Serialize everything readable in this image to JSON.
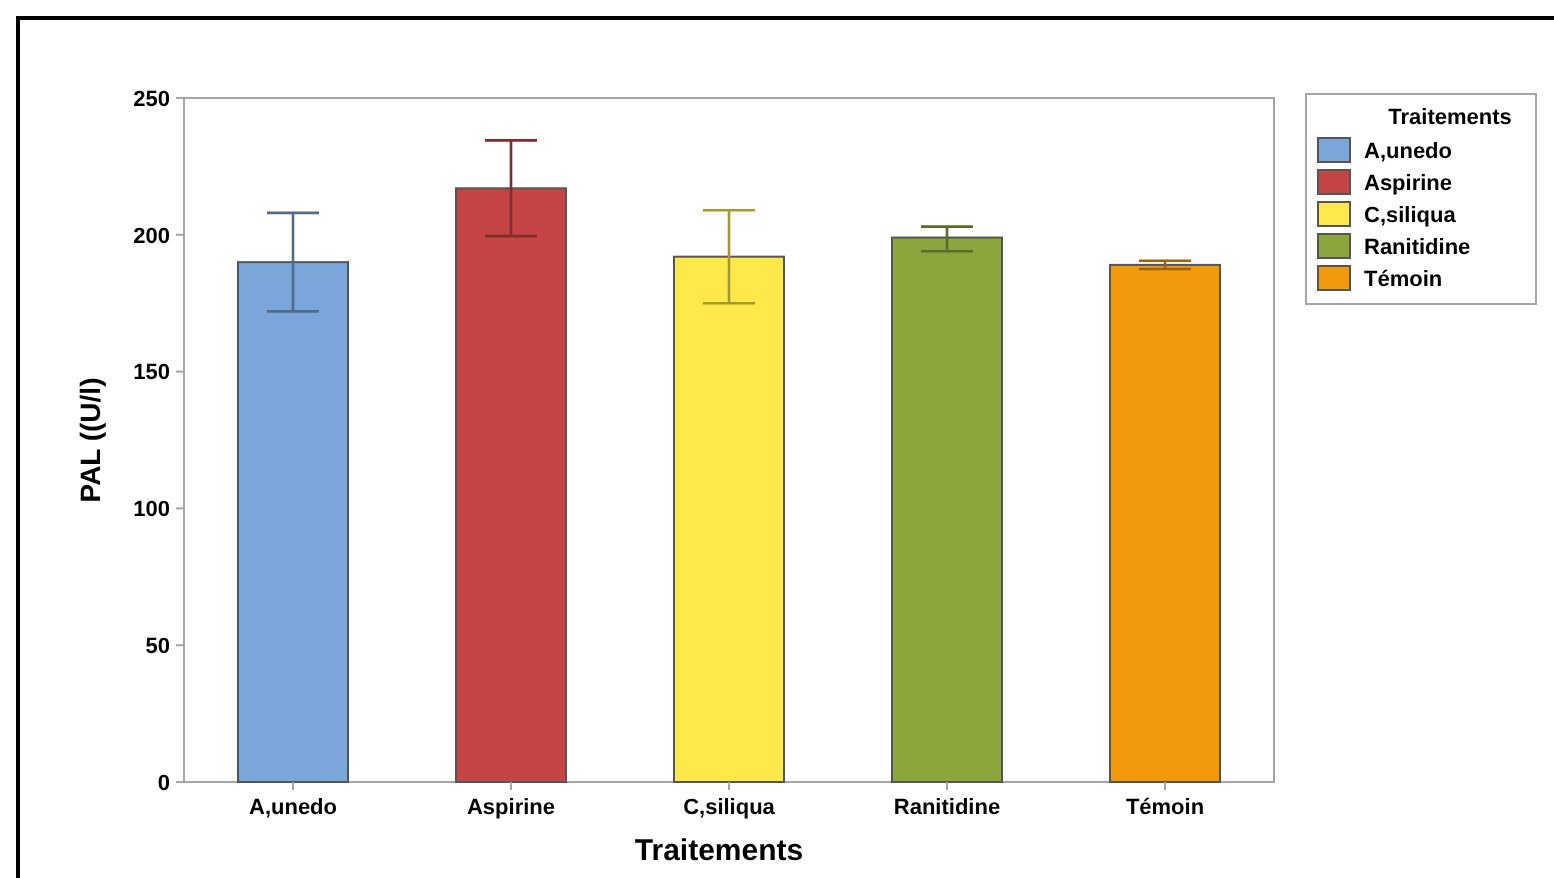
{
  "chart_data": {
    "type": "bar",
    "xlabel": "Traitements",
    "ylabel": "PAL ((U/l)",
    "legend_title": "Traitements",
    "categories": [
      "A,unedo",
      "Aspirine",
      "C,siliqua",
      "Ranitidine",
      "Témoin"
    ],
    "series": [
      {
        "name": "A,unedo",
        "color": "#7ba6d9",
        "values": [
          190,
          null,
          null,
          null,
          null
        ],
        "errors": [
          18,
          null,
          null,
          null,
          null
        ]
      },
      {
        "name": "Aspirine",
        "color": "#c54545",
        "values": [
          null,
          217,
          null,
          null,
          null
        ],
        "errors": [
          null,
          17.5,
          null,
          null,
          null
        ]
      },
      {
        "name": "C,siliqua",
        "color": "#ffe94a",
        "values": [
          null,
          null,
          192,
          null,
          null
        ],
        "errors": [
          null,
          null,
          17,
          null,
          null
        ]
      },
      {
        "name": "Ranitidine",
        "color": "#8aa63c",
        "values": [
          null,
          null,
          null,
          199,
          null
        ],
        "errors": [
          null,
          null,
          null,
          [
            194,
            203
          ],
          null
        ]
      },
      {
        "name": "Témoin",
        "color": "#f39a0c",
        "values": [
          null,
          null,
          null,
          null,
          189
        ],
        "errors": [
          null,
          null,
          null,
          null,
          1.5
        ]
      }
    ],
    "ylim": [
      0,
      250
    ],
    "yticks": [
      0,
      50,
      100,
      150,
      200,
      250
    ],
    "grid": false,
    "legend": "top right"
  }
}
